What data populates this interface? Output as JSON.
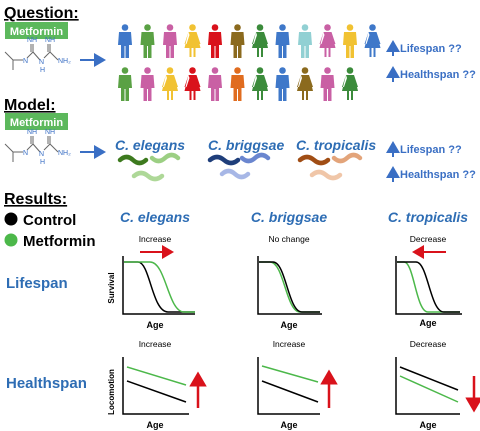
{
  "sections": {
    "question": "Question:",
    "model": "Model:",
    "results": "Results:"
  },
  "drug_label": "Metformin",
  "chem_labels": {
    "nh": "NH",
    "nh2": "NH₂",
    "n": "N",
    "h": "H"
  },
  "outcomes": {
    "lifespan": "Lifespan ??",
    "healthspan": "Healthspan ??"
  },
  "species": [
    "C. elegans",
    "C. briggsae",
    "C. tropicalis"
  ],
  "legend": [
    {
      "label": "Control",
      "color": "#000000"
    },
    {
      "label": "Metformin",
      "color": "#4cb84a"
    }
  ],
  "rows": {
    "lifespan": "Lifespan",
    "healthspan": "Healthspan"
  },
  "lifespan_effects": [
    "Increase",
    "No change",
    "Decrease"
  ],
  "healthspan_effects": [
    "Increase",
    "Increase",
    "Decrease"
  ],
  "axes": {
    "survival": "Survival",
    "locomotion": "Locomotion",
    "age": "Age"
  },
  "colors": {
    "title_blue": "#2e6db4",
    "green": "#4cb84a",
    "red": "#d9121b",
    "arrow_blue": "#3a6fc4",
    "box_green": "#5cb85c",
    "people": [
      "#3f78c9",
      "#5aa144",
      "#c960a4",
      "#f1c232",
      "#d9121b",
      "#8b6a1e",
      "#3b8b3b",
      "#3f78c9",
      "#91d0d3",
      "#c960a4",
      "#f1c232",
      "#3f78c9",
      "#5aa144",
      "#c960a4",
      "#f1c232",
      "#d9121b",
      "#c960a4",
      "#e06c1f",
      "#3b8b3b",
      "#3f78c9",
      "#8b6a1e",
      "#c960a4",
      "#3b8b3b"
    ],
    "worms_elegans": [
      "#3d7a1e",
      "#9ccf83",
      "#aed898"
    ],
    "worms_briggsae": [
      "#1f3e7a",
      "#6a86cf",
      "#a7b7e6"
    ],
    "worms_tropicalis": [
      "#a04d14",
      "#e3a47a",
      "#f0c6a8"
    ]
  }
}
